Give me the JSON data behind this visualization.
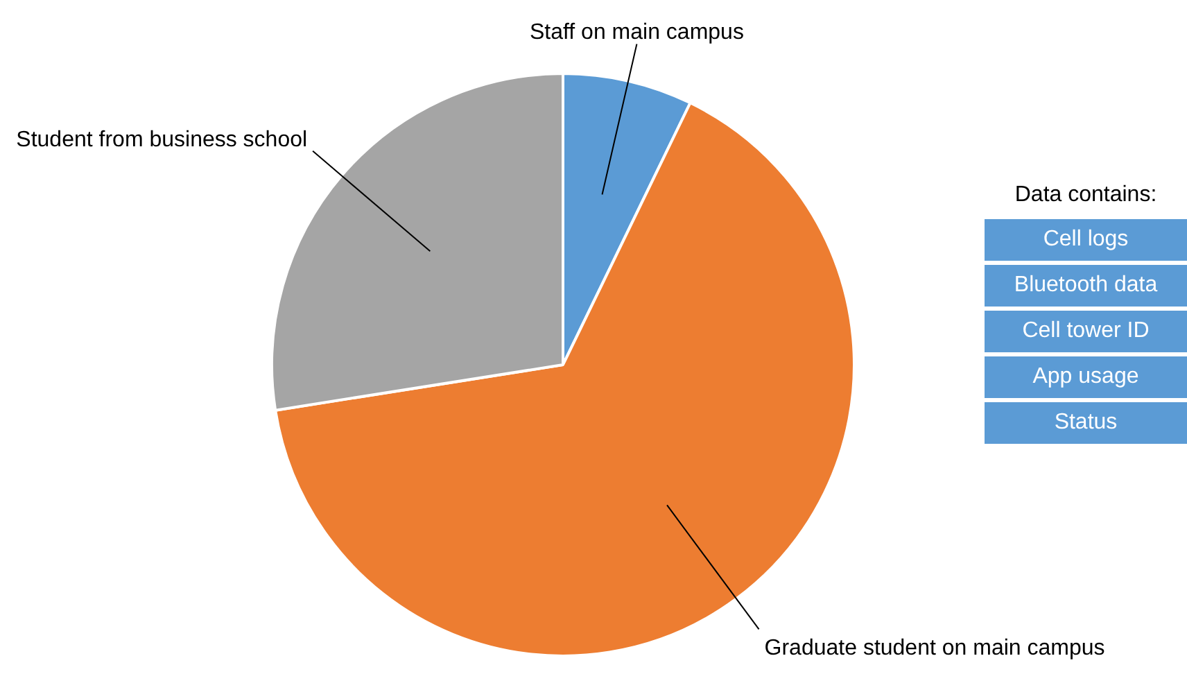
{
  "chart_data": {
    "type": "pie",
    "categories": [
      "Staff on main campus",
      "Graduate student on main campus",
      "Student from business school"
    ],
    "values": [
      7.2,
      65.3,
      27.5
    ],
    "colors": [
      "#5b9bd5",
      "#ed7d31",
      "#a5a5a5"
    ],
    "legend": false,
    "annotations": [
      "Data contains:",
      "Cell logs",
      "Bluetooth data",
      "Cell tower ID",
      "App usage",
      "Status"
    ]
  }
}
